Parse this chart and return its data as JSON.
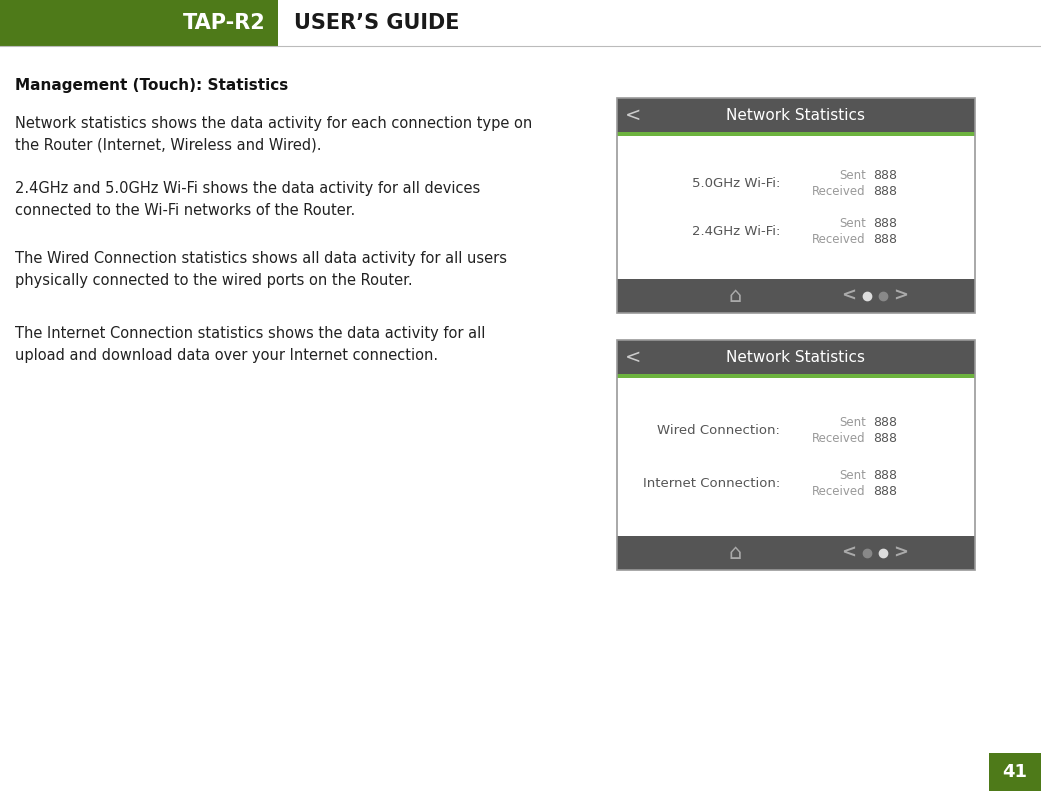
{
  "page_bg": "#ffffff",
  "header_bg": "#4e7a19",
  "header_text": "TAP-R2",
  "header_text_color": "#ffffff",
  "guide_text": "USER’S GUIDE",
  "guide_text_color": "#1a1a1a",
  "header_line_color": "#bbbbbb",
  "page_number": "41",
  "page_number_bg": "#4e7a19",
  "section_title": "Management (Touch): Statistics",
  "body_paragraphs": [
    "Network statistics shows the data activity for each connection type on\nthe Router (Internet, Wireless and Wired).",
    "2.4GHz and 5.0GHz Wi-Fi shows the data activity for all devices\nconnected to the Wi-Fi networks of the Router.",
    "The Wired Connection statistics shows all data activity for all users\nphysically connected to the wired ports on the Router.",
    "The Internet Connection statistics shows the data activity for all\nupload and download data over your Internet connection."
  ],
  "screen1": {
    "title": "Network Statistics",
    "header_bg": "#555555",
    "header_text_color": "#ffffff",
    "green_line": "#6db33f",
    "body_bg": "#ffffff",
    "footer_bg": "#555555",
    "rows": [
      {
        "label": "5.0GHz Wi-Fi:",
        "sent": "888",
        "received": "888"
      },
      {
        "label": "2.4GHz Wi-Fi:",
        "sent": "888",
        "received": "888"
      }
    ],
    "dot1_active": true,
    "dot2_active": false
  },
  "screen2": {
    "title": "Network Statistics",
    "header_bg": "#555555",
    "header_text_color": "#ffffff",
    "green_line": "#6db33f",
    "body_bg": "#ffffff",
    "footer_bg": "#555555",
    "rows": [
      {
        "label": "Wired Connection:",
        "sent": "888",
        "received": "888"
      },
      {
        "label": "Internet Connection:",
        "sent": "888",
        "received": "888"
      }
    ],
    "dot1_active": false,
    "dot2_active": true
  }
}
